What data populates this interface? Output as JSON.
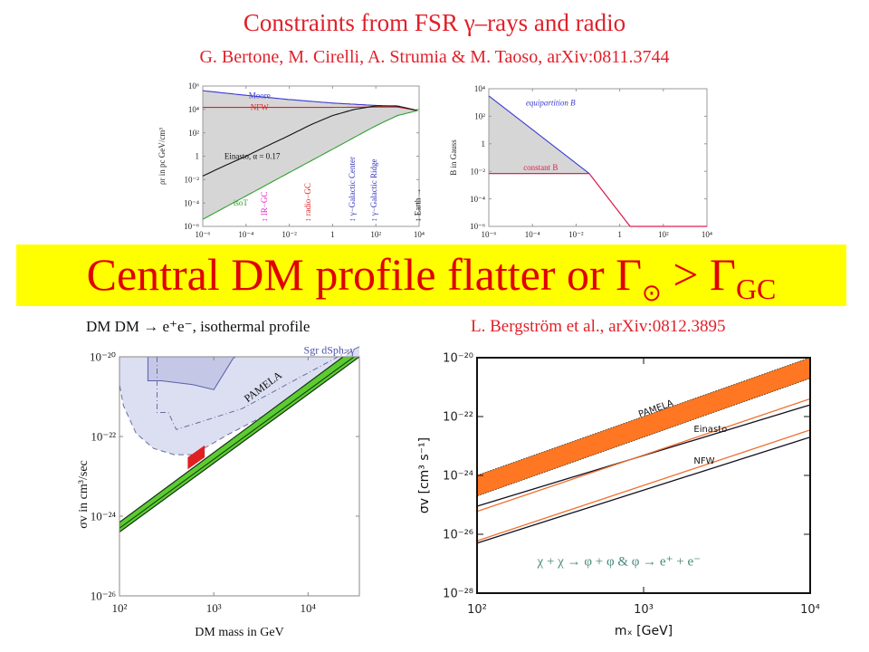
{
  "header": {
    "title": "Constraints from FSR γ–rays and radio",
    "authors": "G. Bertone, M. Cirelli, A. Strumia & M. Taoso, arXiv:0811.3744"
  },
  "banner": {
    "text_main": "Central DM profile flatter or Γ",
    "text_sym": "⊙",
    "text_gt": " > Γ",
    "text_sub": "GC",
    "background": "#ffff00",
    "color": "#e00000"
  },
  "chart_data": [
    {
      "type": "line",
      "title": "",
      "xlabel": "",
      "ylabel": "ρr in pc GeV/cm³",
      "xscale": "log",
      "yscale": "log",
      "xlim": [
        1e-06,
        10000.0
      ],
      "ylim": [
        1e-06,
        1000000.0
      ],
      "xticks": [
        "10⁻⁶",
        "10⁻⁴",
        "10⁻²",
        "1",
        "10²",
        "10⁴"
      ],
      "yticks": [
        "10⁶",
        "10⁴",
        "10²",
        "1",
        "10⁻²",
        "10⁻⁴",
        "10⁻⁶"
      ],
      "series": [
        {
          "name": "Moore",
          "color": "#3a3ad0",
          "x": [
            1e-06,
            0.0001,
            0.01,
            1,
            100,
            1000,
            8500
          ],
          "y": [
            400000.0,
            160000.0,
            70000.0,
            35000.0,
            22000.0,
            18000.0,
            8000.0
          ]
        },
        {
          "name": "NFW",
          "color": "#e02020",
          "x": [
            1e-06,
            0.01,
            1,
            100,
            1000,
            8500
          ],
          "y": [
            15000.0,
            15000.0,
            15000.0,
            16000.0,
            16000.0,
            8000.0
          ]
        },
        {
          "name": "Einasto, α = 0.17",
          "color": "#111111",
          "x": [
            1e-06,
            1e-05,
            0.0001,
            0.001,
            0.01,
            0.1,
            1,
            10,
            100,
            1000,
            8500
          ],
          "y": [
            0.02,
            0.15,
            1,
            8,
            60,
            500,
            3000,
            10000.0,
            20000.0,
            20000.0,
            8000.0
          ]
        },
        {
          "name": "isoT",
          "color": "#30a030",
          "x": [
            1e-06,
            0.01,
            1,
            100,
            1000,
            8500
          ],
          "y": [
            4e-06,
            0.04,
            4,
            400,
            3000,
            8000.0
          ]
        }
      ],
      "annotations": [
        {
          "text": "IR−GC",
          "color": "#e020c0",
          "x": 0.0007
        },
        {
          "text": "radio−GC",
          "color": "#e02020",
          "x": 0.07
        },
        {
          "text": "γ−Galactic Center",
          "color": "#3030c0",
          "x": 8
        },
        {
          "text": "γ−Galactic Ridge",
          "color": "#3030c0",
          "x": 80
        },
        {
          "text": "Earth →",
          "color": "#111111",
          "x": 8500
        }
      ]
    },
    {
      "type": "line",
      "title": "",
      "xlabel": "",
      "ylabel": "B in Gauss",
      "xscale": "log",
      "yscale": "log",
      "xlim": [
        1e-06,
        10000.0
      ],
      "ylim": [
        1e-06,
        10000.0
      ],
      "xticks": [
        "10⁻⁶",
        "10⁻⁴",
        "10⁻²",
        "1",
        "10²",
        "10⁴"
      ],
      "yticks": [
        "10⁴",
        "10²",
        "1",
        "10⁻²",
        "10⁻⁴",
        "10⁻⁶"
      ],
      "series": [
        {
          "name": "equipartition B",
          "color": "#3a3ad0",
          "x": [
            1e-06,
            0.04
          ],
          "y": [
            3000.0,
            0.007
          ]
        },
        {
          "name": "constant B",
          "color": "#e02050",
          "x": [
            1e-06,
            0.04,
            3,
            10000.0
          ],
          "y": [
            0.007,
            0.007,
            1e-06,
            1e-06
          ]
        }
      ]
    },
    {
      "type": "area",
      "title": "DM DM → e⁺e⁻, isothermal profile",
      "xlabel": "DM mass in GeV",
      "ylabel": "σv in cm³/sec",
      "xscale": "log",
      "yscale": "log",
      "xlim": [
        100,
        35000
      ],
      "ylim": [
        1e-26,
        1e-20
      ],
      "xticks": [
        "10²",
        "10³",
        "10⁴"
      ],
      "yticks": [
        "10⁻²⁰",
        "10⁻²²",
        "10⁻²⁴",
        "10⁻²⁶"
      ],
      "series": [
        {
          "name": "PAMELA",
          "color": "#5ccc30",
          "x": [
            100,
            35000
          ],
          "y_low": [
            4e-25,
            1e-20
          ],
          "y_high": [
            7e-25,
            2e-20
          ]
        },
        {
          "name": "PAMELA (preferred)",
          "color": "#e02020",
          "x": [
            530,
            800
          ],
          "y_low": [
            1.5e-23,
            3e-23
          ],
          "y_high": [
            3e-23,
            6e-23
          ]
        }
      ],
      "regions": [
        {
          "name": "Sgr dSph−γ",
          "color": "#dcdff2"
        }
      ]
    },
    {
      "type": "line",
      "title": "L. Bergström et al., arXiv:0812.3895",
      "xlabel": "mₓ [GeV]",
      "ylabel": "σv [cm³ s⁻¹]",
      "xscale": "log",
      "yscale": "log",
      "xlim": [
        100,
        10000
      ],
      "ylim": [
        1e-28,
        1e-20
      ],
      "xticks": [
        "10²",
        "10³",
        "10⁴"
      ],
      "yticks": [
        "10⁻²⁰",
        "10⁻²²",
        "10⁻²⁴",
        "10⁻²⁶",
        "10⁻²⁸"
      ],
      "series": [
        {
          "name": "PAMELA",
          "color": "#ff7722",
          "x": [
            100,
            10000
          ],
          "y_low": [
            2e-25,
            2e-21
          ],
          "y_high": [
            1e-24,
            1e-20
          ]
        },
        {
          "name": "Einasto",
          "color": "#111122",
          "x": [
            100,
            10000
          ],
          "y": [
            9e-26,
            2.5e-22
          ]
        },
        {
          "name": "Einasto (orange)",
          "color": "#f07030",
          "x": [
            100,
            10000
          ],
          "y": [
            6e-26,
            4e-22
          ]
        },
        {
          "name": "NFW",
          "color": "#111122",
          "x": [
            100,
            10000
          ],
          "y": [
            5e-27,
            2e-23
          ]
        },
        {
          "name": "NFW (orange)",
          "color": "#f07030",
          "x": [
            100,
            10000
          ],
          "y": [
            6e-27,
            3.5e-23
          ]
        }
      ],
      "annotation": "χ + χ → φ + φ   &   φ → e⁺ + e⁻"
    }
  ]
}
